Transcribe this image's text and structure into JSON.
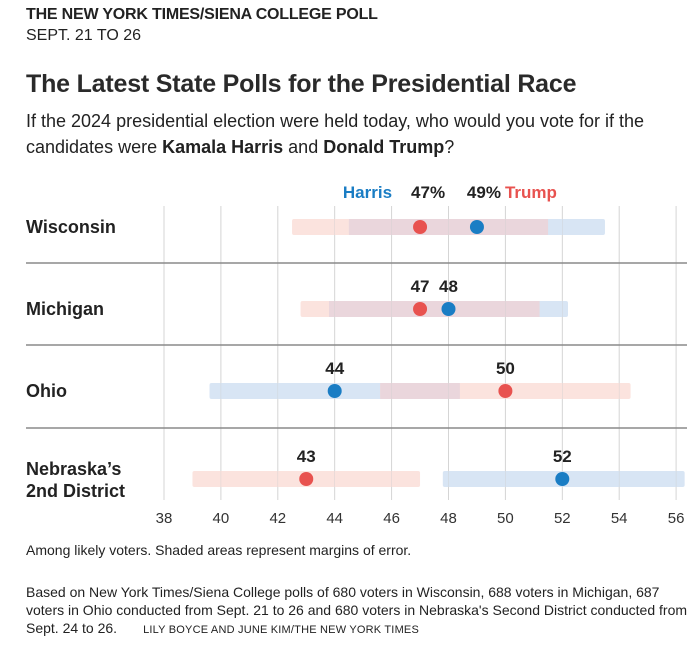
{
  "header": {
    "kicker": "THE NEW YORK TIMES/SIENA COLLEGE POLL",
    "date": "SEPT. 21 TO 26",
    "title": "The Latest State Polls for the Presidential Race",
    "subtitle_pre": "If the 2024 presidential election were held today, who would you vote for if the candidates were ",
    "subtitle_bold1": "Kamala Harris",
    "subtitle_mid": " and ",
    "subtitle_bold2": "Donald Trump",
    "subtitle_post": "?"
  },
  "colors": {
    "harris": "#1a7dc4",
    "trump": "#e8524f",
    "harris_band": "#d6e4f3",
    "trump_band": "#fbe1dc",
    "overlap_band": "#ead6dc"
  },
  "chart_data": {
    "type": "dot-range",
    "title": "The Latest State Polls for the Presidential Race",
    "xlim": [
      38,
      56
    ],
    "xticks": [
      "38",
      "40",
      "42",
      "44",
      "46",
      "48",
      "50",
      "52",
      "54",
      "56"
    ],
    "legend": {
      "harris_label": "Harris",
      "trump_label": "Trump",
      "placement": "top"
    },
    "rows": [
      {
        "label": [
          "Wisconsin"
        ],
        "dots": [
          {
            "value": 47,
            "color": "trump",
            "label": "47%",
            "band": [
              42.5,
              51.5
            ]
          },
          {
            "value": 49,
            "color": "harris",
            "label": "49%",
            "band": [
              44.5,
              53.5
            ]
          }
        ]
      },
      {
        "label": [
          "Michigan"
        ],
        "dots": [
          {
            "value": 47,
            "color": "trump",
            "label": "47",
            "band": [
              42.8,
              51.2
            ]
          },
          {
            "value": 48,
            "color": "harris",
            "label": "48",
            "band": [
              43.8,
              52.2
            ]
          }
        ]
      },
      {
        "label": [
          "Ohio"
        ],
        "dots": [
          {
            "value": 44,
            "color": "harris",
            "label": "44",
            "band": [
              39.6,
              48.4
            ]
          },
          {
            "value": 50,
            "color": "trump",
            "label": "50",
            "band": [
              45.6,
              54.4
            ]
          }
        ]
      },
      {
        "label": [
          "Nebraska’s",
          "2nd District"
        ],
        "dots": [
          {
            "value": 43,
            "color": "trump",
            "label": "43",
            "band": [
              39,
              47
            ]
          },
          {
            "value": 52,
            "color": "harris",
            "label": "52",
            "band": [
              47.8,
              56.3
            ]
          }
        ]
      }
    ]
  },
  "footer": {
    "note": "Among likely voters. Shaded areas represent margins of error.",
    "source": "Based on New York Times/Siena College polls of 680 voters in Wisconsin, 688 voters in Michigan, 687 voters in Ohio conducted from Sept. 21 to 26 and 680 voters in Nebraska's Second District conducted from Sept. 24 to 26.",
    "credit": "LILY BOYCE AND JUNE KIM/THE NEW YORK TIMES"
  }
}
